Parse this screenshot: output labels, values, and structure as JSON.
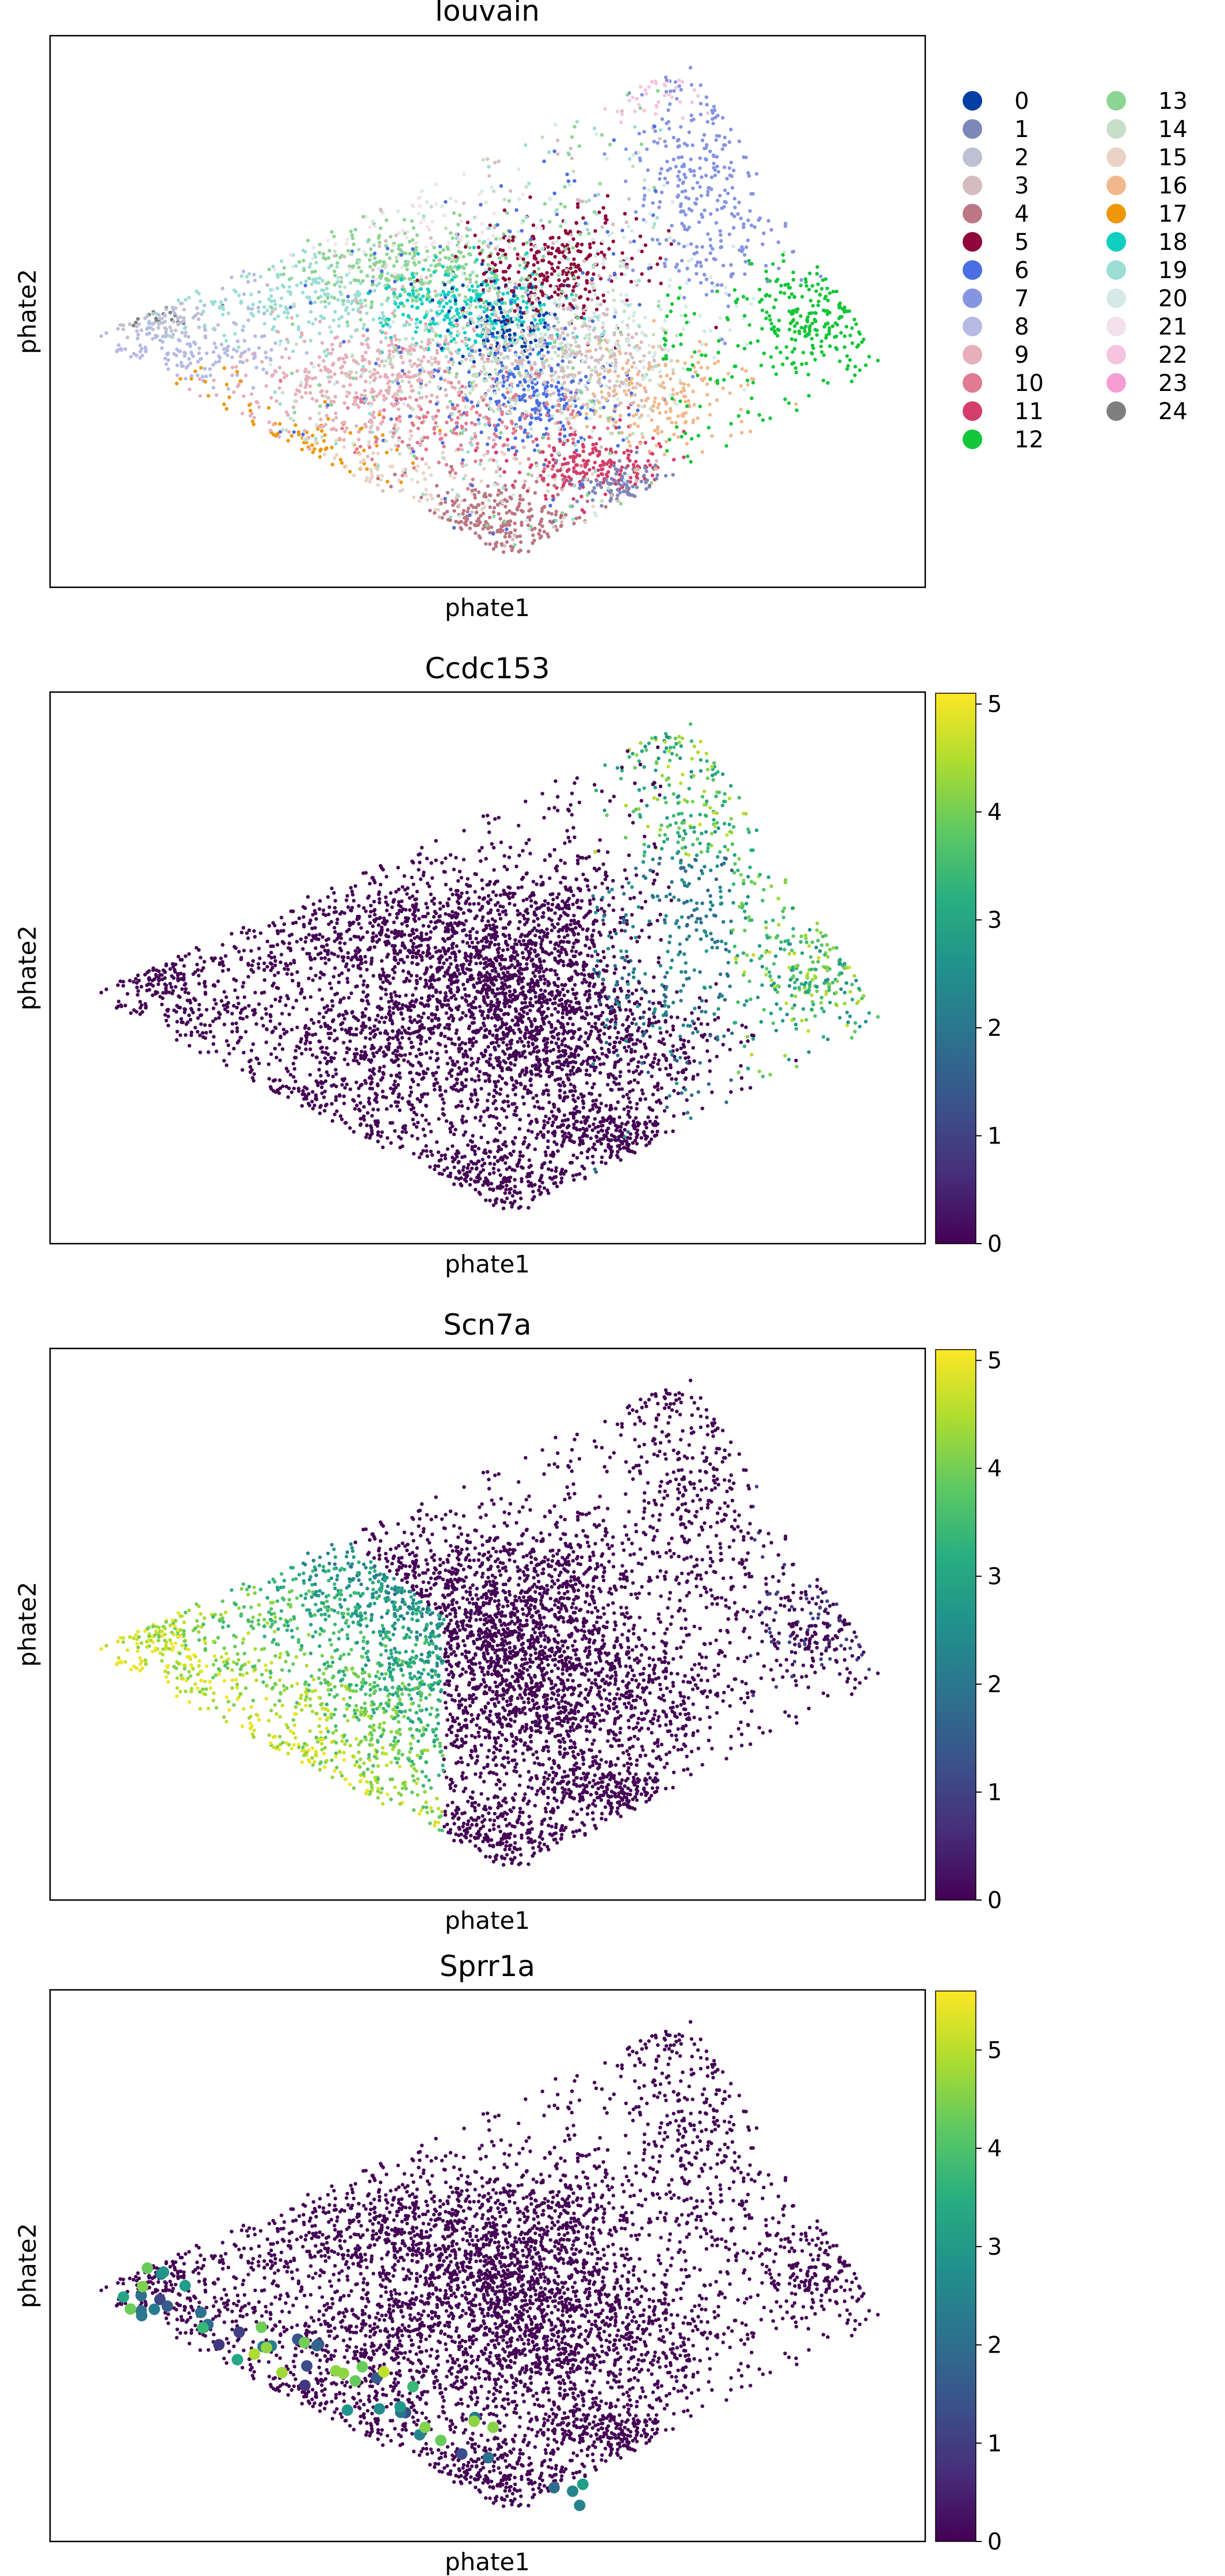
{
  "chart_data": [
    {
      "type": "scatter",
      "title": "louvain",
      "xlabel": "phate1",
      "ylabel": "phate2",
      "color_mode": "categorical",
      "legend": {
        "placement": "right",
        "columns": 2,
        "entries": [
          {
            "label": "0",
            "color": "#023fa5"
          },
          {
            "label": "1",
            "color": "#7d87b9"
          },
          {
            "label": "2",
            "color": "#bec1d4"
          },
          {
            "label": "3",
            "color": "#d6bcc0"
          },
          {
            "label": "4",
            "color": "#bb7784"
          },
          {
            "label": "5",
            "color": "#8e063b"
          },
          {
            "label": "6",
            "color": "#4a6fe3"
          },
          {
            "label": "7",
            "color": "#8595e1"
          },
          {
            "label": "8",
            "color": "#b5bbe3"
          },
          {
            "label": "9",
            "color": "#e6afb9"
          },
          {
            "label": "10",
            "color": "#e07b91"
          },
          {
            "label": "11",
            "color": "#d33f6a"
          },
          {
            "label": "12",
            "color": "#11c638"
          },
          {
            "label": "13",
            "color": "#8dd593"
          },
          {
            "label": "14",
            "color": "#c6dec7"
          },
          {
            "label": "15",
            "color": "#ead3c6"
          },
          {
            "label": "16",
            "color": "#f0b98d"
          },
          {
            "label": "17",
            "color": "#ef9708"
          },
          {
            "label": "18",
            "color": "#0fcfc0"
          },
          {
            "label": "19",
            "color": "#9cded6"
          },
          {
            "label": "20",
            "color": "#d5eae7"
          },
          {
            "label": "21",
            "color": "#f3e1eb"
          },
          {
            "label": "22",
            "color": "#f6c4e1"
          },
          {
            "label": "23",
            "color": "#f79cd4"
          },
          {
            "label": "24",
            "color": "#7f7f7f"
          }
        ]
      }
    },
    {
      "type": "scatter",
      "title": "Ccdc153",
      "xlabel": "phate1",
      "ylabel": "phate2",
      "color_mode": "continuous",
      "colormap": "viridis",
      "colorbar": {
        "min": 0,
        "max": 5.1,
        "ticks": [
          0,
          1,
          2,
          3,
          4,
          5
        ]
      }
    },
    {
      "type": "scatter",
      "title": "Scn7a",
      "xlabel": "phate1",
      "ylabel": "phate2",
      "color_mode": "continuous",
      "colormap": "viridis",
      "colorbar": {
        "min": 0,
        "max": 5.1,
        "ticks": [
          0,
          1,
          2,
          3,
          4,
          5
        ]
      }
    },
    {
      "type": "scatter",
      "title": "Sprr1a",
      "xlabel": "phate1",
      "ylabel": "phate2",
      "color_mode": "continuous",
      "colormap": "viridis",
      "colorbar": {
        "min": 0,
        "max": 5.6,
        "ticks": [
          0,
          1,
          2,
          3,
          4,
          5
        ]
      }
    }
  ]
}
